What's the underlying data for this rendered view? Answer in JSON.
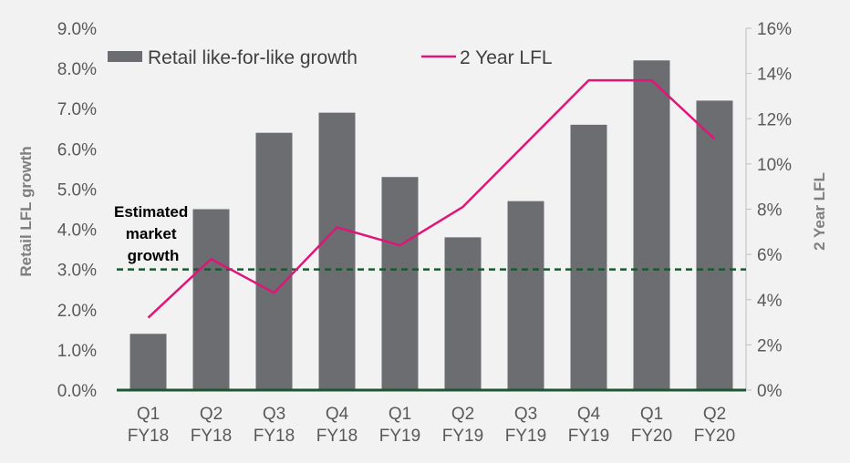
{
  "chart_data": {
    "type": "bar",
    "categories": [
      [
        "Q1",
        "FY18"
      ],
      [
        "Q2",
        "FY18"
      ],
      [
        "Q3",
        "FY18"
      ],
      [
        "Q4",
        "FY18"
      ],
      [
        "Q1",
        "FY19"
      ],
      [
        "Q2",
        "FY19"
      ],
      [
        "Q3",
        "FY19"
      ],
      [
        "Q4",
        "FY19"
      ],
      [
        "Q1",
        "FY20"
      ],
      [
        "Q2",
        "FY20"
      ]
    ],
    "series": [
      {
        "name": "Retail like-for-like growth",
        "kind": "bar",
        "axis": "left",
        "color": "#6b6d70",
        "values": [
          1.4,
          4.5,
          6.4,
          6.9,
          5.3,
          3.8,
          4.7,
          6.6,
          8.2,
          7.2
        ]
      },
      {
        "name": "2 Year LFL",
        "kind": "line",
        "axis": "right",
        "color": "#e0157a",
        "values": [
          3.2,
          5.8,
          4.3,
          7.2,
          6.4,
          8.1,
          10.9,
          13.7,
          13.7,
          11.1
        ]
      }
    ],
    "left_axis": {
      "label": "Retail LFL growth",
      "ylim": [
        0,
        9
      ],
      "ticks": [
        "0.0%",
        "1.0%",
        "2.0%",
        "3.0%",
        "4.0%",
        "5.0%",
        "6.0%",
        "7.0%",
        "8.0%",
        "9.0%"
      ]
    },
    "right_axis": {
      "label": "2 Year LFL",
      "ylim": [
        0,
        16
      ],
      "ticks": [
        "0%",
        "2%",
        "4%",
        "6%",
        "8%",
        "10%",
        "12%",
        "14%",
        "16%"
      ]
    },
    "reference_line": {
      "value": 3.0,
      "axis": "left",
      "label_lines": [
        "Estimated",
        "market",
        "growth"
      ],
      "color": "#1e5631",
      "style": "dashed"
    },
    "baseline_color": "#1e5631",
    "legend_position": "top",
    "grid": false
  }
}
